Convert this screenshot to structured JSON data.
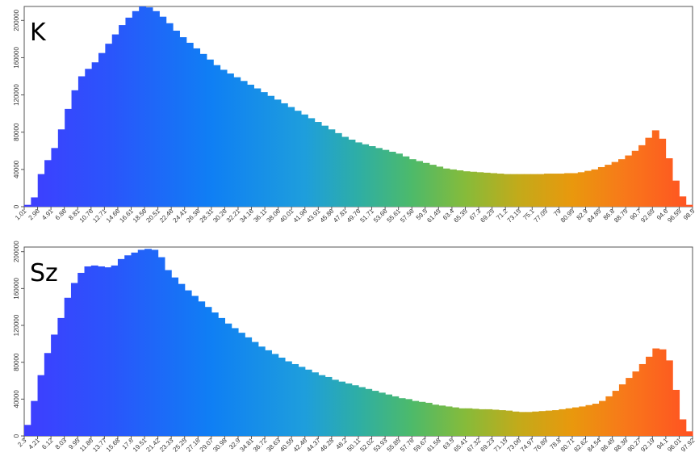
{
  "chart_data": [
    {
      "type": "bar",
      "panel_label": "K",
      "x_tick_labels": [
        "1.01",
        "2.96",
        "4.91",
        "6.86",
        "8.81",
        "10.76",
        "12.71",
        "14.66",
        "16.61",
        "18.56",
        "20.51",
        "22.46",
        "24.41",
        "26.36",
        "28.31",
        "30.26",
        "32.21",
        "34.16",
        "36.11",
        "38.06",
        "40.01",
        "41.96",
        "43.91",
        "45.86",
        "47.81",
        "49.76",
        "51.71",
        "53.66",
        "55.61",
        "57.56",
        "59.5",
        "61.45",
        "63.4",
        "65.35",
        "67.3",
        "69.25",
        "71.2",
        "73.15",
        "75.1",
        "77.05",
        "79",
        "80.95",
        "82.9",
        "84.85",
        "86.8",
        "88.75",
        "90.7",
        "92.65",
        "94.6",
        "96.55",
        "98.5"
      ],
      "values": [
        2000,
        10000,
        35000,
        50000,
        63000,
        83000,
        105000,
        125000,
        140000,
        148000,
        155000,
        165000,
        175000,
        185000,
        195000,
        203000,
        210000,
        215000,
        214000,
        210000,
        204000,
        197000,
        189000,
        182000,
        176000,
        170000,
        164000,
        158000,
        152000,
        147000,
        143000,
        139000,
        135000,
        131000,
        127000,
        123000,
        119000,
        115000,
        111000,
        107000,
        103000,
        99000,
        95000,
        91000,
        87000,
        83000,
        79000,
        75000,
        72000,
        69000,
        67000,
        65000,
        63000,
        61000,
        59000,
        57000,
        54000,
        51000,
        49000,
        47000,
        45000,
        43000,
        41000,
        40000,
        39000,
        38000,
        37500,
        37000,
        36500,
        36000,
        35500,
        35000,
        35000,
        35000,
        35000,
        35000,
        35000,
        35500,
        35500,
        35500,
        36000,
        36000,
        37000,
        38500,
        40000,
        42500,
        45000,
        48000,
        51000,
        55000,
        60000,
        66000,
        74000,
        82000,
        73000,
        52000,
        28000,
        11000,
        2000
      ],
      "y_tick_labels": [
        "0",
        "40000",
        "80000",
        "120000",
        "160000",
        "200000"
      ],
      "ylim": [
        0,
        215000
      ]
    },
    {
      "type": "bar",
      "panel_label": "Sz",
      "x_tick_labels": [
        "2.3",
        "4.21",
        "6.12",
        "8.03",
        "9.95",
        "11.86",
        "13.77",
        "15.68",
        "17.6",
        "19.51",
        "21.42",
        "23.33",
        "25.25",
        "27.16",
        "29.07",
        "30.98",
        "32.9",
        "34.81",
        "36.72",
        "38.63",
        "40.55",
        "42.46",
        "44.37",
        "46.28",
        "48.2",
        "50.11",
        "52.02",
        "53.93",
        "55.85",
        "57.76",
        "59.67",
        "61.58",
        "63.5",
        "65.41",
        "67.32",
        "69.23",
        "71.15",
        "73.06",
        "74.97",
        "76.89",
        "78.8",
        "80.71",
        "82.62",
        "84.54",
        "86.45",
        "88.36",
        "90.27",
        "92.19",
        "94.1",
        "96.01",
        "97.92"
      ],
      "values": [
        12000,
        38000,
        66000,
        90000,
        110000,
        128000,
        150000,
        166000,
        177000,
        184000,
        185000,
        184000,
        183000,
        185000,
        192000,
        196000,
        199000,
        202000,
        203000,
        202000,
        194000,
        180000,
        172000,
        165000,
        158000,
        152000,
        146000,
        140000,
        134000,
        128000,
        122000,
        117000,
        112000,
        107000,
        102000,
        97000,
        93000,
        89000,
        85000,
        81000,
        78000,
        75000,
        72000,
        69000,
        66000,
        64000,
        61000,
        59000,
        57000,
        55000,
        53000,
        51000,
        49000,
        47000,
        45000,
        43000,
        41000,
        40000,
        38000,
        37000,
        36000,
        34000,
        33000,
        32000,
        31000,
        30000,
        30000,
        29500,
        29000,
        29000,
        28500,
        28000,
        27500,
        26500,
        26000,
        26000,
        26500,
        27000,
        27500,
        28000,
        29000,
        30000,
        31000,
        32000,
        33500,
        35000,
        38000,
        43000,
        49000,
        56000,
        63000,
        70000,
        78000,
        86000,
        95000,
        94000,
        82000,
        50000,
        18000,
        5000
      ],
      "y_tick_labels": [
        "0",
        "40000",
        "80000",
        "120000",
        "160000",
        "200000"
      ],
      "ylim": [
        0,
        205000
      ]
    }
  ]
}
